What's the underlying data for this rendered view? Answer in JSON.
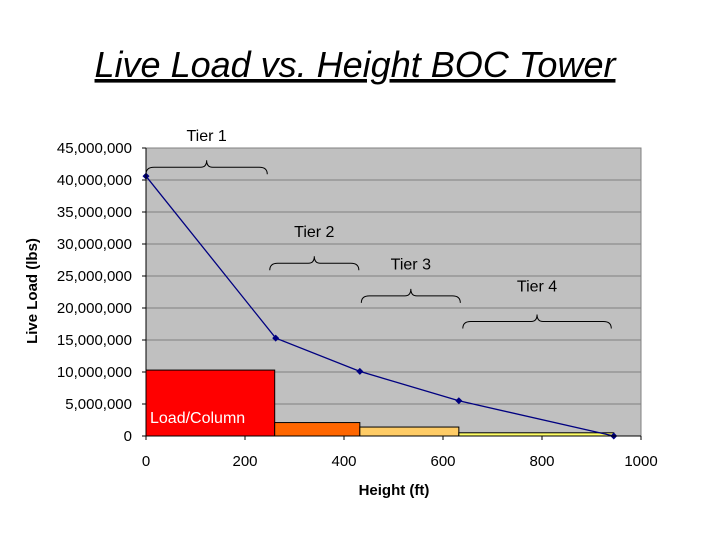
{
  "chart_data": {
    "type": "line",
    "title": "Live Load vs. Height BOC Tower",
    "xlabel": "Height (ft)",
    "ylabel": "Live Load (lbs)",
    "xlim": [
      0,
      1000
    ],
    "ylim": [
      0,
      45000000
    ],
    "x_ticks": [
      0,
      200,
      400,
      600,
      800,
      1000
    ],
    "x_tick_labels": [
      "0",
      "200",
      "400",
      "600",
      "800",
      "1000"
    ],
    "y_ticks": [
      0,
      5000000,
      10000000,
      15000000,
      20000000,
      25000000,
      30000000,
      35000000,
      40000000,
      45000000
    ],
    "y_tick_labels": [
      "0",
      "5,000,000",
      "10,000,000",
      "15,000,000",
      "20,000,000",
      "25,000,000",
      "30,000,000",
      "35,000,000",
      "40,000,000",
      "45,000,000"
    ],
    "grid": true,
    "series": [
      {
        "name": "Live Load",
        "x": [
          0,
          262,
          432,
          632,
          945
        ],
        "y": [
          40600000,
          15300000,
          10100000,
          5500000,
          0
        ]
      }
    ],
    "load_bars": [
      {
        "x_start": 0,
        "x_end": 260,
        "value": 10300000,
        "color": "#ff0000"
      },
      {
        "x_start": 260,
        "x_end": 432,
        "value": 2100000,
        "color": "#ff6600"
      },
      {
        "x_start": 432,
        "x_end": 632,
        "value": 1400000,
        "color": "#ffcc66"
      },
      {
        "x_start": 632,
        "x_end": 945,
        "value": 500000,
        "color": "#ffff66"
      }
    ],
    "load_bar_label": "Load/Column",
    "tiers": [
      {
        "label": "Tier 1",
        "x_start": 0,
        "x_end": 245,
        "y_brace": 42000000,
        "y_label": 46100000
      },
      {
        "label": "Tier 2",
        "x_start": 250,
        "x_end": 430,
        "y_brace": 27000000,
        "y_label": 31100000
      },
      {
        "label": "Tier 3",
        "x_start": 435,
        "x_end": 635,
        "y_brace": 21900000,
        "y_label": 26000000
      },
      {
        "label": "Tier 4",
        "x_start": 640,
        "x_end": 940,
        "y_brace": 17900000,
        "y_label": 22600000
      }
    ],
    "colors": {
      "plot_bg": "#c0c0c0",
      "line": "#000080",
      "grid": "#808080"
    }
  }
}
